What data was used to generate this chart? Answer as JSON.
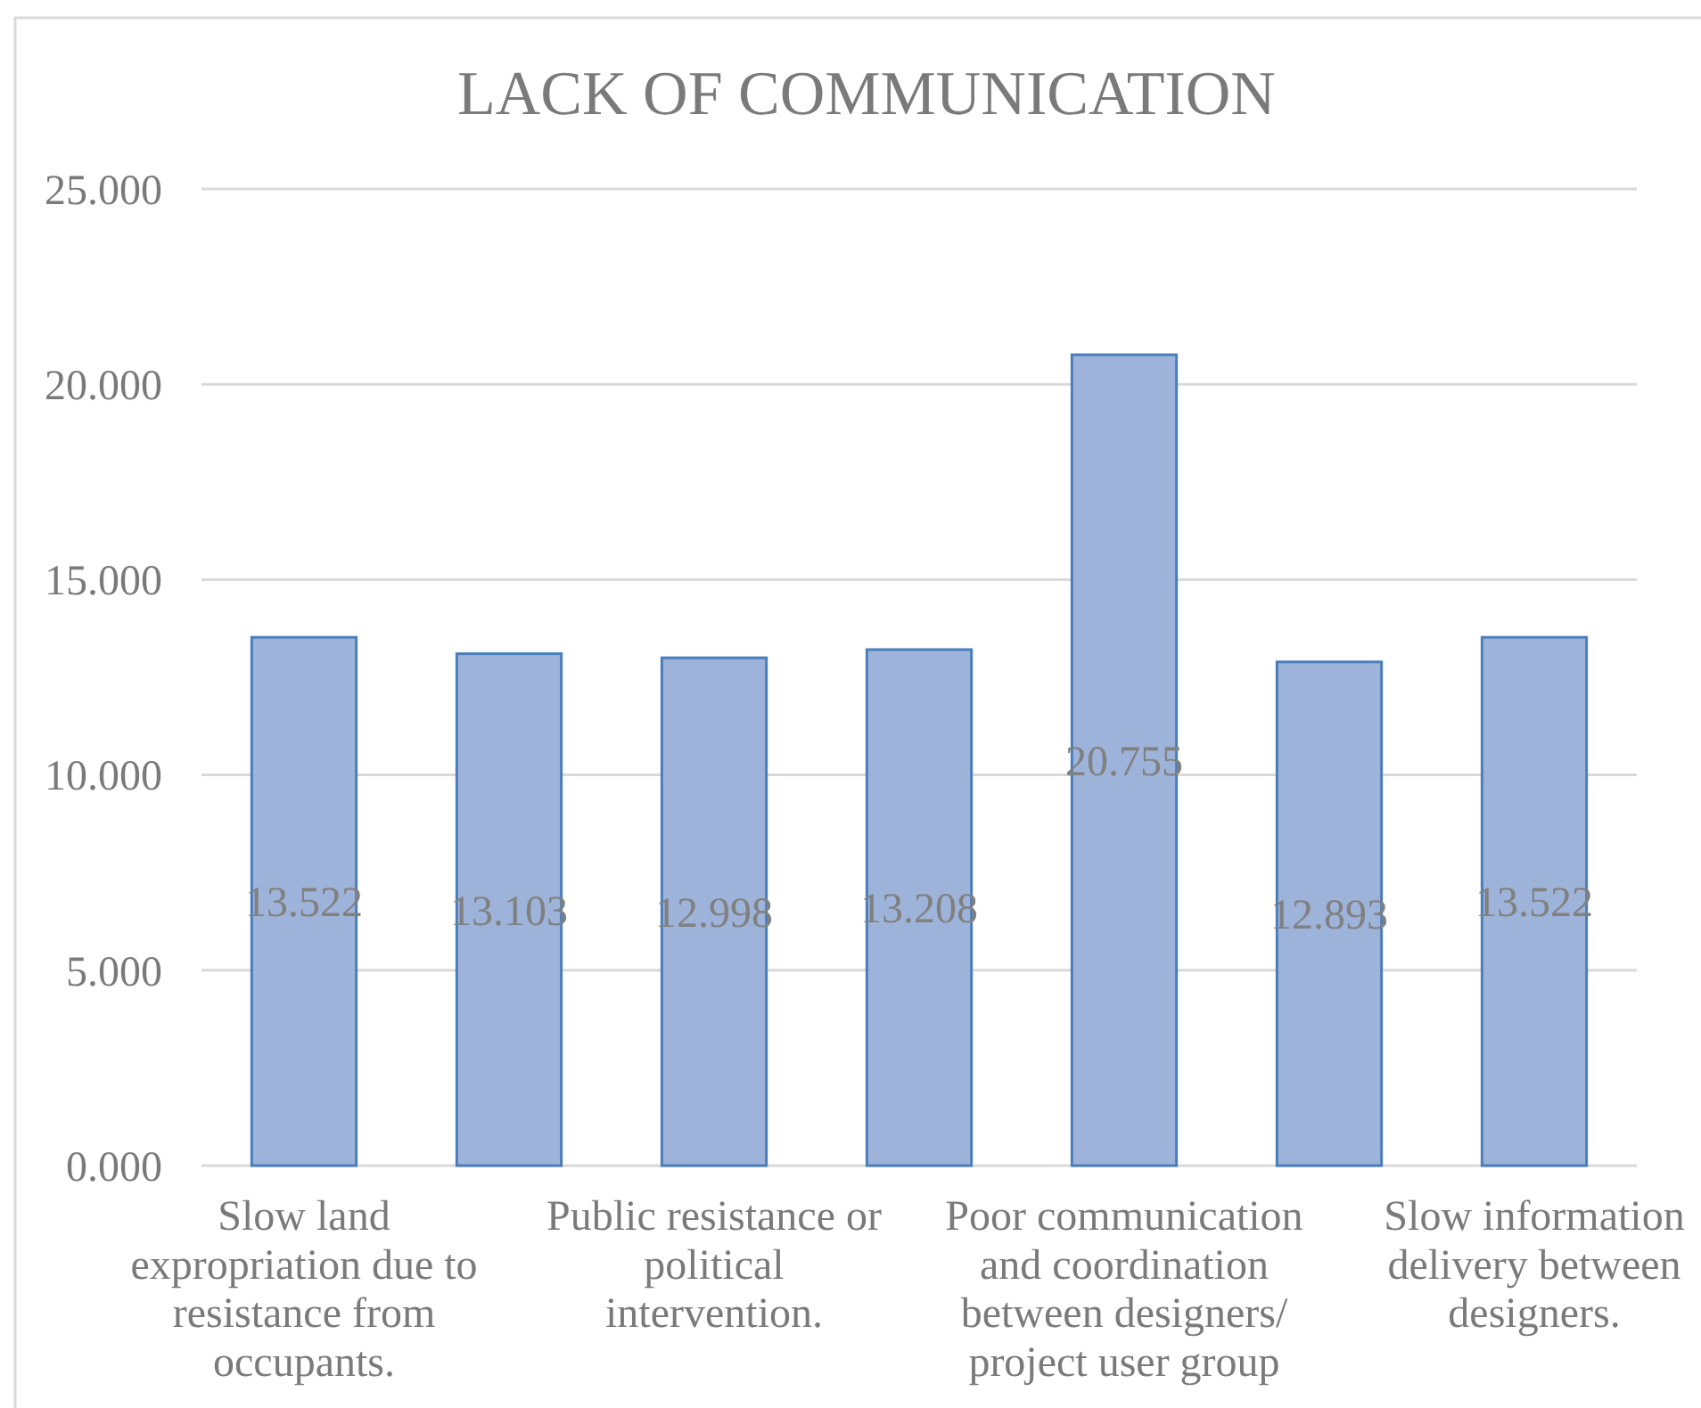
{
  "chart_data": {
    "type": "bar",
    "title": "LACK OF COMMUNICATION",
    "categories": [
      "Slow land expropriation due to resistance from occupants.",
      null,
      "Public resistance or political intervention.",
      null,
      "Poor communication and coordination between designers/ project user group",
      null,
      "Slow information delivery between designers."
    ],
    "values": [
      13.522,
      13.103,
      12.998,
      13.208,
      20.755,
      12.893,
      13.522
    ],
    "color": "#9eb3d9",
    "ylim": [
      0,
      25
    ],
    "yticks": [
      {
        "value": 0,
        "label": "0.000"
      },
      {
        "value": 5,
        "label": "5.000"
      },
      {
        "value": 10,
        "label": "10.000"
      },
      {
        "value": 15,
        "label": "15.000"
      },
      {
        "value": 20,
        "label": "20.000"
      },
      {
        "value": 25,
        "label": "25.000"
      }
    ],
    "grid": "y",
    "data_labels": true
  }
}
